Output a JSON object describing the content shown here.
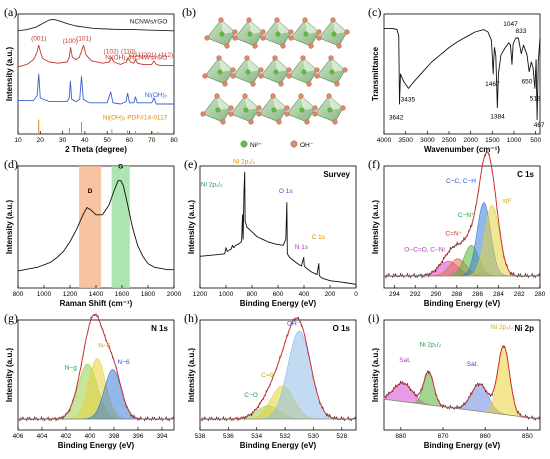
{
  "panels": [
    {
      "id": "a",
      "label": "(a)",
      "kind": "xrd",
      "xlabel": "2 Theta (degree)",
      "ylabel": "Intensity (a.u.)",
      "xticks": [
        10,
        20,
        30,
        40,
        50,
        60,
        70,
        80
      ],
      "xlim": [
        10,
        80
      ],
      "series": [
        {
          "name": "NCNWs/rGO",
          "color": "#222222",
          "x": [
            10,
            14,
            18,
            22,
            24,
            26,
            28,
            32,
            36,
            40,
            44,
            50,
            56,
            62,
            70,
            80
          ],
          "y": [
            0.86,
            0.87,
            0.89,
            0.93,
            0.95,
            0.955,
            0.945,
            0.92,
            0.9,
            0.89,
            0.88,
            0.875,
            0.87,
            0.87,
            0.865,
            0.86
          ]
        },
        {
          "name": "Ni(OH)₂/NCNWs/rGO",
          "color": "#c0392b",
          "x": [
            10,
            14,
            17,
            18.5,
            19.3,
            20,
            21,
            24,
            28,
            32,
            33,
            33.6,
            34.4,
            36,
            37.5,
            38.5,
            39.4,
            40.5,
            43,
            48,
            51,
            52,
            53,
            56,
            58.5,
            59.4,
            60.5,
            62,
            62.7,
            63.6,
            66,
            70,
            71,
            72,
            74,
            80
          ],
          "y": [
            0.56,
            0.58,
            0.62,
            0.68,
            0.74,
            0.69,
            0.63,
            0.6,
            0.59,
            0.6,
            0.64,
            0.72,
            0.64,
            0.62,
            0.64,
            0.69,
            0.74,
            0.66,
            0.61,
            0.59,
            0.6,
            0.64,
            0.6,
            0.58,
            0.6,
            0.63,
            0.6,
            0.59,
            0.62,
            0.59,
            0.58,
            0.58,
            0.61,
            0.58,
            0.57,
            0.57
          ]
        },
        {
          "name": "Ni(OH)₂",
          "color": "#3b5fd0",
          "x": [
            10,
            17,
            18.6,
            19.3,
            20,
            24,
            32,
            33,
            33.5,
            34.1,
            36,
            37.7,
            38.5,
            39.3,
            42,
            50,
            51.6,
            52.6,
            56,
            58.5,
            59.2,
            60,
            62,
            62.7,
            63.5,
            70,
            71.1,
            72,
            74,
            80
          ],
          "y": [
            0.28,
            0.28,
            0.32,
            0.5,
            0.3,
            0.27,
            0.27,
            0.3,
            0.44,
            0.29,
            0.27,
            0.29,
            0.48,
            0.29,
            0.26,
            0.26,
            0.35,
            0.26,
            0.25,
            0.27,
            0.34,
            0.26,
            0.26,
            0.31,
            0.26,
            0.26,
            0.3,
            0.25,
            0.25,
            0.25
          ]
        }
      ],
      "annotations": [
        {
          "text": "(001)",
          "x": 19.3,
          "y": 0.78,
          "color": "#c0392b"
        },
        {
          "text": "(100)",
          "x": 33.5,
          "y": 0.76,
          "color": "#c0392b"
        },
        {
          "text": "(101)",
          "x": 39.5,
          "y": 0.78,
          "color": "#c0392b"
        },
        {
          "text": "(102)",
          "x": 51.8,
          "y": 0.67,
          "color": "#c0392b"
        },
        {
          "text": "(110)",
          "x": 59.5,
          "y": 0.67,
          "color": "#c0392b"
        },
        {
          "text": "(111)",
          "x": 63,
          "y": 0.64,
          "color": "#c0392b"
        },
        {
          "text": "(201) (112)",
          "x": 72.5,
          "y": 0.64,
          "color": "#c0392b"
        },
        {
          "text": "NCNWs/rGO",
          "x": 77,
          "y": 0.92,
          "color": "#222222"
        },
        {
          "text": "Ni(OH)₂/NCNWs/rGO",
          "x": 77,
          "y": 0.62,
          "color": "#c0392b"
        },
        {
          "text": "Ni(OH)₂",
          "x": 77,
          "y": 0.31,
          "color": "#3b5fd0"
        },
        {
          "text": "Ni(OH)₂ PDF#14-0117",
          "x": 77,
          "y": 0.12,
          "color": "#e08a00"
        }
      ],
      "reference": {
        "name": "Ni(OH)₂ PDF#14-0117",
        "color": "#e08a00",
        "x": [
          19.3,
          33.1,
          38.5,
          52.1,
          59.1,
          62.7,
          70.5,
          72.8
        ],
        "h": [
          0.12,
          0.05,
          0.1,
          0.04,
          0.03,
          0.025,
          0.02,
          0.02
        ]
      }
    },
    {
      "id": "b",
      "label": "(b)",
      "kind": "structure",
      "legend": [
        {
          "text": "Ni²⁺",
          "color": "#5fbf3a"
        },
        {
          "text": "OH⁻",
          "color": "#e0876a"
        }
      ]
    },
    {
      "id": "c",
      "label": "(c)",
      "kind": "ftir",
      "xlabel": "Wavenumber (cm⁻¹)",
      "ylabel": "Transmittance",
      "xticks": [
        4000,
        3500,
        3000,
        2500,
        2000,
        1500,
        1000,
        500
      ],
      "xlim": [
        4000,
        400
      ],
      "series": [
        {
          "name": "ftir",
          "color": "#111111",
          "x": [
            4000,
            3800,
            3700,
            3660,
            3642,
            3620,
            3550,
            3435,
            3300,
            3100,
            2900,
            2700,
            2500,
            2300,
            2100,
            1900,
            1700,
            1600,
            1520,
            1480,
            1467,
            1450,
            1420,
            1384,
            1360,
            1300,
            1200,
            1120,
            1080,
            1047,
            1020,
            960,
            900,
            833,
            780,
            700,
            650,
            600,
            560,
            518,
            490,
            467,
            440,
            420,
            400
          ],
          "y": [
            0.88,
            0.88,
            0.87,
            0.82,
            0.25,
            0.5,
            0.44,
            0.38,
            0.44,
            0.52,
            0.6,
            0.66,
            0.72,
            0.77,
            0.81,
            0.85,
            0.87,
            0.85,
            0.78,
            0.5,
            0.62,
            0.72,
            0.65,
            0.22,
            0.5,
            0.66,
            0.72,
            0.76,
            0.74,
            0.58,
            0.75,
            0.8,
            0.8,
            0.67,
            0.74,
            0.66,
            0.52,
            0.6,
            0.55,
            0.38,
            0.62,
            0.12,
            0.6,
            0.7,
            0.8
          ]
        }
      ],
      "annotations": [
        {
          "text": "3642",
          "x": 3720,
          "y": 0.12
        },
        {
          "text": "3435",
          "x": 3450,
          "y": 0.27
        },
        {
          "text": "1467",
          "x": 1500,
          "y": 0.4
        },
        {
          "text": "1384",
          "x": 1380,
          "y": 0.13
        },
        {
          "text": "1047",
          "x": 1080,
          "y": 0.9
        },
        {
          "text": "833",
          "x": 840,
          "y": 0.84
        },
        {
          "text": "650",
          "x": 700,
          "y": 0.42
        },
        {
          "text": "518",
          "x": 510,
          "y": 0.28
        },
        {
          "text": "467",
          "x": 420,
          "y": 0.06
        }
      ]
    },
    {
      "id": "d",
      "label": "(d)",
      "kind": "raman",
      "xlabel": "Raman Shift (cm⁻¹)",
      "ylabel": "Intensity (a.u.)",
      "xticks": [
        800,
        1000,
        1200,
        1400,
        1600,
        1800,
        2000
      ],
      "xlim": [
        800,
        2000
      ],
      "bands": [
        {
          "name": "D",
          "from": 1270,
          "to": 1440,
          "color": "#f4b893"
        },
        {
          "name": "G",
          "from": 1520,
          "to": 1660,
          "color": "#9ee0a4"
        }
      ],
      "series": [
        {
          "name": "raman",
          "color": "#111111",
          "x": [
            800,
            850,
            900,
            950,
            1000,
            1050,
            1100,
            1150,
            1200,
            1250,
            1300,
            1330,
            1360,
            1400,
            1450,
            1500,
            1540,
            1570,
            1590,
            1610,
            1640,
            1680,
            1720,
            1760,
            1800,
            1850,
            1900,
            1950,
            2000
          ],
          "y": [
            0.14,
            0.15,
            0.16,
            0.17,
            0.19,
            0.21,
            0.25,
            0.3,
            0.38,
            0.48,
            0.6,
            0.66,
            0.64,
            0.6,
            0.6,
            0.68,
            0.8,
            0.88,
            0.88,
            0.84,
            0.7,
            0.5,
            0.35,
            0.26,
            0.2,
            0.17,
            0.16,
            0.15,
            0.15
          ]
        }
      ],
      "annotations": [
        {
          "text": "D",
          "x": 1355,
          "y": 0.78,
          "color": "#000000"
        },
        {
          "text": "G",
          "x": 1590,
          "y": 0.98,
          "color": "#000000"
        }
      ]
    },
    {
      "id": "e",
      "label": "(e)",
      "kind": "survey",
      "title": "Survey",
      "xlabel": "Binding Energy (eV)",
      "ylabel": "Intensity (a.u.)",
      "xticks": [
        1200,
        1000,
        800,
        600,
        400,
        200,
        0
      ],
      "xlim": [
        1200,
        0
      ],
      "series": [
        {
          "name": "survey",
          "color": "#111111",
          "x": [
            1200,
            1100,
            1010,
            1000,
            990,
            960,
            950,
            940,
            925,
            905,
            880,
            873,
            868,
            862,
            856,
            853,
            840,
            820,
            790,
            760,
            720,
            680,
            620,
            560,
            540,
            532,
            528,
            510,
            450,
            420,
            402,
            398,
            380,
            340,
            300,
            286,
            282,
            260,
            200,
            120,
            60,
            0
          ],
          "y": [
            0.26,
            0.27,
            0.28,
            0.33,
            0.3,
            0.32,
            0.35,
            0.33,
            0.35,
            0.36,
            0.38,
            0.6,
            0.4,
            0.78,
            0.95,
            0.55,
            0.5,
            0.48,
            0.45,
            0.42,
            0.4,
            0.38,
            0.36,
            0.35,
            0.4,
            0.7,
            0.28,
            0.25,
            0.2,
            0.18,
            0.25,
            0.18,
            0.16,
            0.13,
            0.11,
            0.2,
            0.1,
            0.08,
            0.06,
            0.05,
            0.04,
            0.03
          ]
        }
      ],
      "annotations": [
        {
          "text": "Ni 2p₃/₂",
          "x": 860,
          "y": 1.02,
          "color": "#e08a00"
        },
        {
          "text": "Ni 2p₁/₂",
          "x": 1110,
          "y": 0.83,
          "color": "#1a9b4a"
        },
        {
          "text": "O 1s",
          "x": 540,
          "y": 0.78,
          "color": "#2d56c9"
        },
        {
          "text": "N 1s",
          "x": 420,
          "y": 0.32,
          "color": "#b03ab8"
        },
        {
          "text": "C 1s",
          "x": 290,
          "y": 0.4,
          "color": "#e08a00"
        }
      ]
    },
    {
      "id": "f",
      "label": "(f)",
      "kind": "xps",
      "title": "C 1s",
      "xlabel": "Binding Energy (eV)",
      "ylabel": "Intensity (a.u.)",
      "xticks": [
        294,
        292,
        290,
        288,
        286,
        284,
        282,
        280
      ],
      "xlim": [
        295,
        280
      ],
      "peaks": [
        {
          "name": "O−C=O, C−Ni",
          "center": 288.8,
          "width": 0.9,
          "height": 0.12,
          "color": "#d54bd0"
        },
        {
          "name": "C=N⁺",
          "center": 287.9,
          "width": 0.8,
          "height": 0.14,
          "color": "#e36b4f"
        },
        {
          "name": "C−N⁺",
          "center": 286.6,
          "width": 0.7,
          "height": 0.25,
          "color": "#5ab33a"
        },
        {
          "name": "C−C, C−H",
          "center": 285.4,
          "width": 0.65,
          "height": 0.6,
          "color": "#3a7bd5"
        },
        {
          "name": "sp²",
          "center": 284.6,
          "width": 0.7,
          "height": 0.58,
          "color": "#e2d43c"
        }
      ],
      "annotations": [
        {
          "text": "C−C, C−H",
          "x": 287.6,
          "y": 0.86,
          "color": "#2d56c9"
        },
        {
          "text": "sp²",
          "x": 283.2,
          "y": 0.7,
          "color": "#c8a800"
        },
        {
          "text": "C−N⁺",
          "x": 287.1,
          "y": 0.58,
          "color": "#1a9b4a"
        },
        {
          "text": "C=N⁺",
          "x": 288.3,
          "y": 0.43,
          "color": "#c0392b"
        },
        {
          "text": "O−C=O, C−Ni",
          "x": 291.1,
          "y": 0.3,
          "color": "#b03ab8"
        }
      ]
    },
    {
      "id": "g",
      "label": "(g)",
      "kind": "xps",
      "title": "N 1s",
      "xlabel": "Binding Energy (eV)",
      "ylabel": "Intensity (a.u.)",
      "xticks": [
        406,
        404,
        402,
        400,
        398,
        396,
        394
      ],
      "xlim": [
        406,
        393
      ],
      "peaks": [
        {
          "name": "N−g",
          "center": 400.2,
          "width": 0.8,
          "height": 0.5,
          "color": "#9ad04a"
        },
        {
          "name": "N−5",
          "center": 399.4,
          "width": 0.7,
          "height": 0.55,
          "color": "#e7d13a"
        },
        {
          "name": "N−6",
          "center": 398.1,
          "width": 0.7,
          "height": 0.45,
          "color": "#3a7bd5"
        }
      ],
      "annotations": [
        {
          "text": "N−g",
          "x": 401.6,
          "y": 0.55,
          "color": "#1a9b4a"
        },
        {
          "text": "N−5",
          "x": 398.8,
          "y": 0.75,
          "color": "#c8a800"
        },
        {
          "text": "N−6",
          "x": 397.2,
          "y": 0.6,
          "color": "#2d56c9"
        }
      ]
    },
    {
      "id": "h",
      "label": "(h)",
      "kind": "xps",
      "title": "O 1s",
      "xlabel": "Binding Energy (eV)",
      "ylabel": "Intensity (a.u.)",
      "xticks": [
        538,
        536,
        534,
        532,
        530,
        528
      ],
      "xlim": [
        538,
        527
      ],
      "peaks": [
        {
          "name": "C−O",
          "center": 533.2,
          "width": 0.8,
          "height": 0.12,
          "color": "#9ad04a"
        },
        {
          "name": "C=O",
          "center": 532.2,
          "width": 0.8,
          "height": 0.3,
          "color": "#e7d13a"
        },
        {
          "name": "OH⁻",
          "center": 531.0,
          "width": 0.8,
          "height": 0.8,
          "color": "#8fbde8"
        }
      ],
      "annotations": [
        {
          "text": "OH⁻",
          "x": 531.4,
          "y": 0.95,
          "color": "#2d56c9"
        },
        {
          "text": "C=O",
          "x": 533.2,
          "y": 0.48,
          "color": "#c8a800"
        },
        {
          "text": "C−O",
          "x": 534.4,
          "y": 0.3,
          "color": "#1a9b4a"
        }
      ]
    },
    {
      "id": "i",
      "label": "(i)",
      "kind": "xps",
      "title": "Ni 2p",
      "xlabel": "Binding Energy (eV)",
      "ylabel": "Intensity (a.u.)",
      "xticks": [
        880,
        870,
        860,
        850
      ],
      "xlim": [
        884,
        847
      ],
      "baseline": [
        0.28,
        0.1
      ],
      "peaks": [
        {
          "name": "Sat.",
          "center": 879.5,
          "width": 2.2,
          "height": 0.17,
          "color": "#d54bd0"
        },
        {
          "name": "Ni 2p₁/₂",
          "center": 873.4,
          "width": 1.2,
          "height": 0.3,
          "color": "#5ab33a"
        },
        {
          "name": "Sat.",
          "center": 861.3,
          "width": 2.0,
          "height": 0.25,
          "color": "#6c8be0"
        },
        {
          "name": "Ni 2p₃/₂",
          "center": 855.6,
          "width": 1.4,
          "height": 0.62,
          "color": "#e7d13a"
        }
      ],
      "annotations": [
        {
          "text": "Sat.",
          "x": 879,
          "y": 0.62,
          "color": "#b03ab8"
        },
        {
          "text": "Ni 2p₁/₂",
          "x": 873,
          "y": 0.76,
          "color": "#1a9b4a"
        },
        {
          "text": "Sat.",
          "x": 863,
          "y": 0.58,
          "color": "#2d56c9"
        },
        {
          "text": "Ni 2p₃/₂",
          "x": 856,
          "y": 0.92,
          "color": "#c8a800"
        }
      ]
    }
  ]
}
